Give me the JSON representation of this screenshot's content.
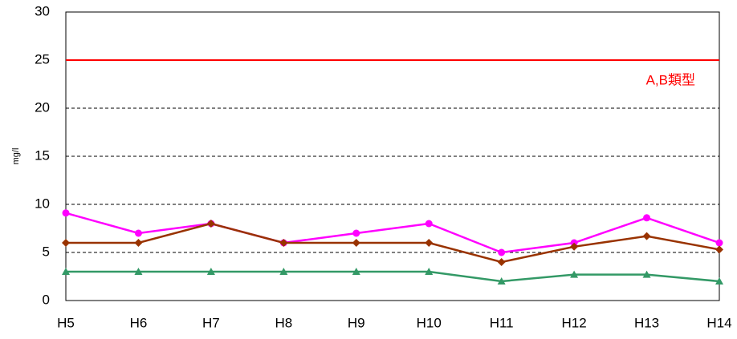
{
  "chart_data": {
    "type": "line",
    "y_label": "mg/l",
    "categories": [
      "H5",
      "H6",
      "H7",
      "H8",
      "H9",
      "H10",
      "H11",
      "H12",
      "H13",
      "H14"
    ],
    "series": [
      {
        "color": "#ff00ff",
        "marker": "circle",
        "values": [
          9.1,
          7,
          8,
          6,
          7,
          8,
          5,
          6,
          8.6,
          6
        ]
      },
      {
        "color": "#993300",
        "marker": "diamond",
        "values": [
          6,
          6,
          8,
          6,
          6,
          6,
          4,
          5.6,
          6.7,
          5.3
        ]
      },
      {
        "color": "#339966",
        "marker": "triangle",
        "values": [
          3,
          3,
          3,
          3,
          3,
          3,
          2,
          2.7,
          2.7,
          2
        ]
      }
    ],
    "reference_line": {
      "value": 25,
      "label": "A,B類型",
      "color": "#ff0000"
    },
    "ylim": [
      0,
      30
    ],
    "yticks": [
      0,
      5,
      10,
      15,
      20,
      25,
      30
    ],
    "grid": true
  }
}
